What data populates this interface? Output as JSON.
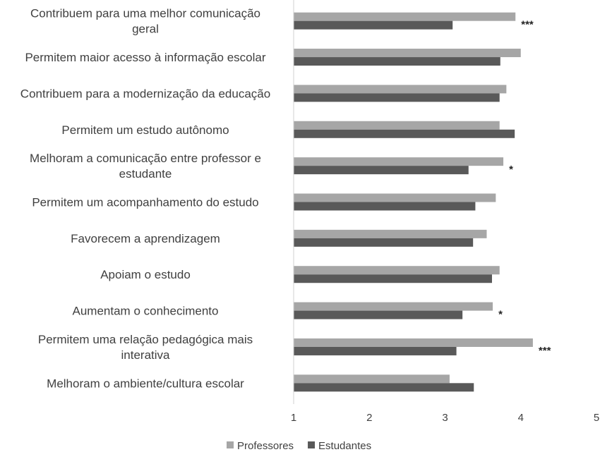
{
  "chart_data": {
    "type": "bar",
    "orientation": "horizontal",
    "categories": [
      [
        "Contribuem para uma melhor comunicação",
        "geral"
      ],
      [
        "Permitem maior acesso à informação escolar"
      ],
      [
        "Contribuem para a modernização da educação"
      ],
      [
        "Permitem um estudo autônomo"
      ],
      [
        "Melhoram a comunicação entre professor e",
        "estudante"
      ],
      [
        "Permitem um acompanhamento do estudo"
      ],
      [
        "Favorecem a aprendizagem"
      ],
      [
        "Apoiam o estudo"
      ],
      [
        "Aumentam o conhecimento"
      ],
      [
        "Permitem uma relação pedagógica mais",
        "interativa"
      ],
      [
        "Melhoram o ambiente/cultura escolar"
      ]
    ],
    "series": [
      {
        "name": "Professores",
        "color": "#a6a6a6",
        "values": [
          3.93,
          4.0,
          3.81,
          3.72,
          3.77,
          3.67,
          3.55,
          3.72,
          3.63,
          4.16,
          3.06
        ]
      },
      {
        "name": "Estudantes",
        "color": "#595959",
        "values": [
          3.1,
          3.73,
          3.72,
          3.92,
          3.31,
          3.4,
          3.37,
          3.62,
          3.23,
          3.15,
          3.38
        ]
      }
    ],
    "significance": [
      "***",
      "",
      "",
      "",
      "*",
      "",
      "",
      "",
      "*",
      "***",
      ""
    ],
    "xlim": [
      1,
      5
    ],
    "xticks": [
      "1",
      "2",
      "3",
      "4",
      "5"
    ],
    "grid": false,
    "legend": "bottom",
    "title": "",
    "xlabel": "",
    "ylabel": ""
  }
}
